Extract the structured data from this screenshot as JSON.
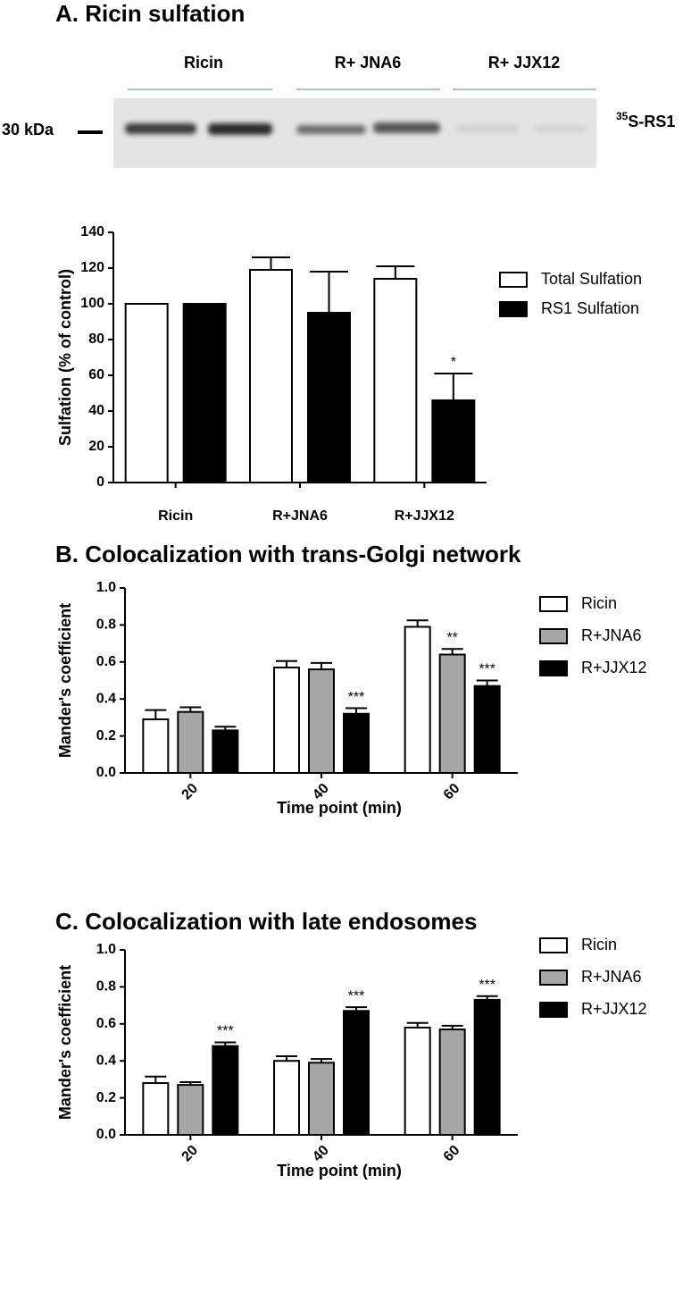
{
  "blot": {
    "title": "A. Ricin sulfation",
    "lanes": [
      "Ricin",
      "R+ JNA6",
      "R+ JJX12"
    ],
    "marker": "30 kDa",
    "band_label_sup": "35",
    "band_label": "S-RS1"
  },
  "chart_data": [
    {
      "type": "bar",
      "ylabel": "Sulfation (% of control)",
      "categories": [
        "Ricin",
        "R+JNA6",
        "R+JJX12"
      ],
      "ylim": [
        0,
        140
      ],
      "yticks": [
        0,
        20,
        40,
        60,
        80,
        100,
        120,
        140
      ],
      "series": [
        {
          "name": "Total Sulfation",
          "color": "#ffffff",
          "values": [
            100,
            119,
            114
          ],
          "errors": [
            0,
            7,
            7
          ],
          "significance": [
            null,
            null,
            null
          ]
        },
        {
          "name": "RS1 Sulfation",
          "color": "#000000",
          "values": [
            100,
            95,
            46
          ],
          "errors": [
            0,
            23,
            15
          ],
          "significance": [
            null,
            null,
            "*"
          ]
        }
      ]
    },
    {
      "type": "bar",
      "title": "B. Colocalization with trans-Golgi network",
      "xlabel": "Time point (min)",
      "ylabel": "Mander's coefficient",
      "categories": [
        "20",
        "40",
        "60"
      ],
      "ylim": [
        0,
        1
      ],
      "yticks": [
        {
          "value": 0,
          "label": "0.0"
        },
        0.2,
        0.4,
        0.6,
        0.8,
        {
          "value": 1,
          "label": "1.0"
        }
      ],
      "series": [
        {
          "name": "Ricin",
          "color": "#ffffff",
          "values": [
            0.29,
            0.57,
            0.79
          ],
          "errors": [
            0.05,
            0.035,
            0.035
          ],
          "significance": [
            null,
            null,
            null
          ]
        },
        {
          "name": "R+JNA6",
          "color": "#a6a6a8",
          "values": [
            0.33,
            0.56,
            0.64
          ],
          "errors": [
            0.025,
            0.035,
            0.03
          ],
          "significance": [
            null,
            null,
            "**"
          ]
        },
        {
          "name": "R+JJX12",
          "color": "#000000",
          "values": [
            0.23,
            0.32,
            0.47
          ],
          "errors": [
            0.02,
            0.03,
            0.03
          ],
          "significance": [
            null,
            "***",
            "***"
          ]
        }
      ]
    },
    {
      "type": "bar",
      "title": "C. Colocalization with late endosomes",
      "xlabel": "Time point (min)",
      "ylabel": "Mander's coefficient",
      "categories": [
        "20",
        "40",
        "60"
      ],
      "ylim": [
        0,
        1
      ],
      "yticks": [
        {
          "value": 0,
          "label": "0.0"
        },
        0.2,
        0.4,
        0.6,
        0.8,
        {
          "value": 1,
          "label": "1.0"
        }
      ],
      "series": [
        {
          "name": "Ricin",
          "color": "#ffffff",
          "values": [
            0.28,
            0.4,
            0.58
          ],
          "errors": [
            0.035,
            0.025,
            0.025
          ],
          "significance": [
            null,
            null,
            null
          ]
        },
        {
          "name": "R+JNA6",
          "color": "#a6a6a8",
          "values": [
            0.27,
            0.39,
            0.57
          ],
          "errors": [
            0.015,
            0.02,
            0.02
          ],
          "significance": [
            null,
            null,
            null
          ]
        },
        {
          "name": "R+JJX12",
          "color": "#000000",
          "values": [
            0.48,
            0.67,
            0.73
          ],
          "errors": [
            0.02,
            0.02,
            0.02
          ],
          "significance": [
            "***",
            "***",
            "***"
          ]
        }
      ]
    }
  ]
}
